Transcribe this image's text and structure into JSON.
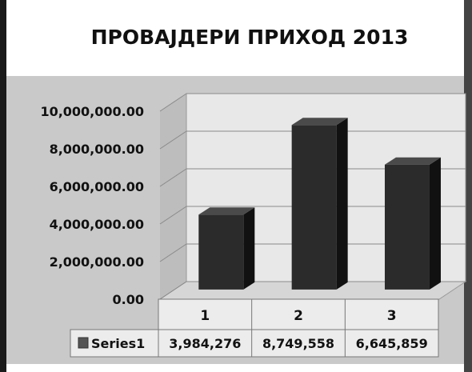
{
  "chart_data": {
    "type": "bar",
    "title": "ПРОВАЈДЕРИ ПРИХОД 2013",
    "categories": [
      "1",
      "2",
      "3"
    ],
    "series": [
      {
        "name": "Series1",
        "values": [
          3984276,
          8749558,
          6645859
        ]
      }
    ],
    "value_labels": [
      "3,984,276",
      "8,749,558",
      "6,645,859"
    ],
    "y_ticks": [
      {
        "value": 0,
        "label": "0.00"
      },
      {
        "value": 2000000,
        "label": "2,000,000.00"
      },
      {
        "value": 4000000,
        "label": "4,000,000.00"
      },
      {
        "value": 6000000,
        "label": "6,000,000.00"
      },
      {
        "value": 8000000,
        "label": "8,000,000.00"
      },
      {
        "value": 10000000,
        "label": "10,000,000.00"
      }
    ],
    "ylim": [
      0,
      10000000
    ],
    "grid": true,
    "legend": "data-table",
    "three_d": true
  },
  "colors": {
    "bar_front": "#2b2b2b",
    "bar_side": "#111111",
    "bar_top": "#4a4a4a",
    "plot_back": "#e8e8e8",
    "plot_side": "#bdbdbd",
    "outer_band": "#c9c9c9",
    "legend_key": "#555555"
  }
}
